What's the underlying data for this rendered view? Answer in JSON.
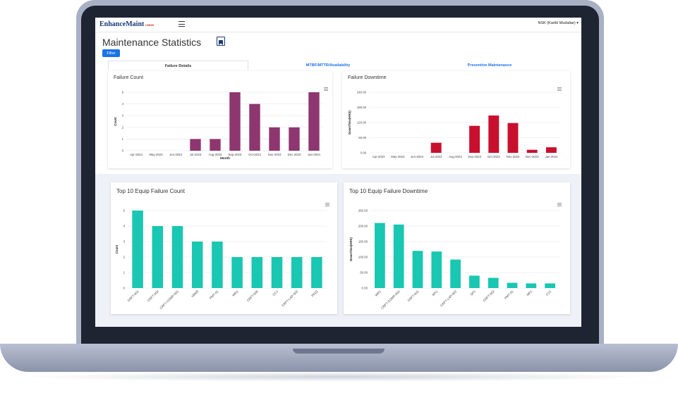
{
  "app": {
    "logo_text": "EnhanceMaint",
    "logo_sub": "CMMS",
    "user_label": "NSK  (Kartik Mudaliar)",
    "user_dropdown_icon": "caret-down-icon",
    "menu_icon": "hamburger-icon"
  },
  "page": {
    "title": "Maintenance Statistics",
    "title_icon": "bookmark-icon",
    "filter_label": "Filter"
  },
  "tabs": [
    {
      "label": "Failure Details",
      "active": true
    },
    {
      "label": "MTBF/MTTR/Availability",
      "active": false
    },
    {
      "label": "Preventive Maintenance",
      "active": false
    }
  ],
  "colors": {
    "failure_count": "#8e3670",
    "failure_downtime": "#c8102e",
    "top10": "#19c7b2",
    "accent": "#1a73e8"
  },
  "chart_data": [
    {
      "id": "failure-count",
      "type": "bar",
      "title": "Failure Count",
      "xlabel": "Month",
      "ylabel": "Count",
      "categories": [
        "Apr-2023",
        "May-2023",
        "Jun-2023",
        "Jul-2023",
        "Aug-2023",
        "Sep-2023",
        "Oct-2023",
        "Nov-2023",
        "Dec-2023",
        "Jan-2024"
      ],
      "values": [
        0,
        0,
        0,
        1,
        1,
        5,
        4,
        2,
        2,
        5
      ],
      "yticks": [
        "0",
        "1",
        "2",
        "3",
        "4",
        "5"
      ],
      "ylim": [
        0,
        5
      ],
      "grid": true
    },
    {
      "id": "failure-downtime",
      "type": "bar",
      "title": "Failure Downtime",
      "xlabel": "",
      "ylabel": "DownTime(HRS)",
      "categories": [
        "Apr-2023",
        "May-2023",
        "Jun-2023",
        "Jul-2023",
        "Aug-2023",
        "Sep-2023",
        "Oct-2023",
        "Nov-2023",
        "Dec-2023",
        "Jan-2024"
      ],
      "values": [
        0,
        0,
        0,
        40,
        0,
        107,
        148,
        118,
        12,
        22
      ],
      "yticks": [
        "0.00",
        "60.00",
        "120.00",
        "180.00",
        "240.00"
      ],
      "ylim": [
        0,
        240
      ],
      "grid": true
    },
    {
      "id": "top10-count",
      "type": "bar",
      "title": "Top 10 Equip Failure Count",
      "xlabel": "",
      "ylabel": "Count",
      "categories": [
        "CRFT-001",
        "CRFT-002",
        "CRFT-COMP-001",
        "VBM3",
        "PMT-01",
        "WR1",
        "CRFT-005",
        "CC1",
        "CRFT-LAP-002",
        "PK02"
      ],
      "values": [
        5,
        4,
        4,
        3,
        3,
        2,
        2,
        2,
        2,
        2
      ],
      "yticks": [
        "0",
        "1",
        "2",
        "3",
        "4",
        "5"
      ],
      "ylim": [
        0,
        5
      ],
      "grid": true
    },
    {
      "id": "top10-downtime",
      "type": "bar",
      "title": "Top 10 Equip Failure Downtime",
      "xlabel": "",
      "ylabel": "DownTime(HRS)",
      "categories": [
        "WR1",
        "CRFT-COMP-001",
        "CRFT-001",
        "MX1",
        "CRFT-LAP-002",
        "SP1",
        "CRFT-002",
        "PMT-01",
        "MP1",
        "CV1"
      ],
      "values": [
        210,
        205,
        120,
        118,
        92,
        40,
        33,
        17,
        15,
        15
      ],
      "yticks": [
        "0.00",
        "50.00",
        "100.00",
        "150.00",
        "200.00",
        "250.00"
      ],
      "ylim": [
        0,
        250
      ],
      "grid": true
    }
  ]
}
